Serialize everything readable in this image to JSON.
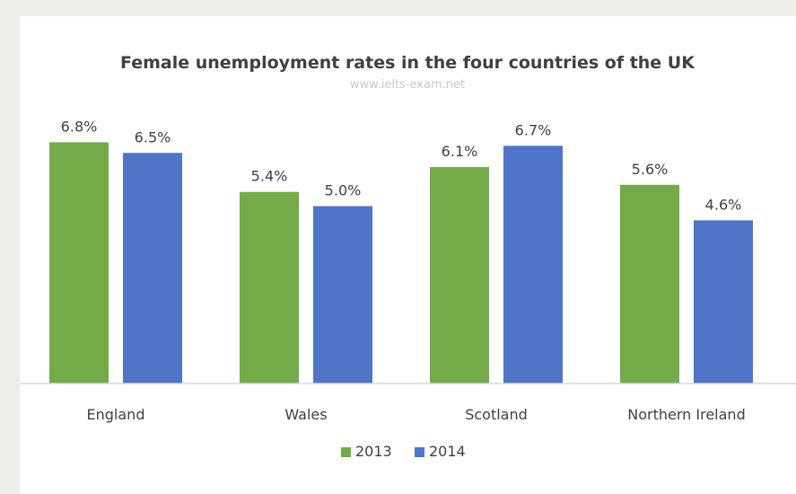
{
  "chart_data": {
    "type": "bar",
    "title": "Female unemployment rates in the four countries of the UK",
    "watermark": "www.ielts-exam.net",
    "categories": [
      "England",
      "Wales",
      "Scotland",
      "Northern Ireland"
    ],
    "series": [
      {
        "name": "2013",
        "color": "#72ab48",
        "values": [
          6.8,
          5.4,
          6.1,
          5.6
        ],
        "labels": [
          "6.8%",
          "5.4%",
          "6.1%",
          "5.6%"
        ]
      },
      {
        "name": "2014",
        "color": "#4e75c8",
        "values": [
          6.5,
          5.0,
          6.7,
          4.6
        ],
        "labels": [
          "6.5%",
          "5.0%",
          "6.7%",
          "4.6%"
        ]
      }
    ],
    "ylim": [
      0,
      7
    ],
    "grid": false,
    "legend_position": "bottom"
  }
}
